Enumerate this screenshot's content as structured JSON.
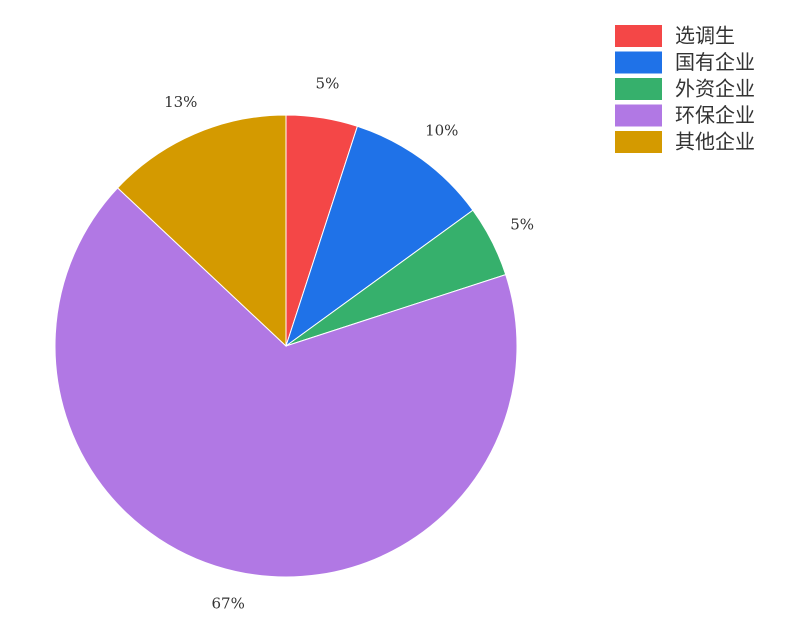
{
  "chart_data": {
    "type": "pie",
    "categories": [
      "选调生",
      "国有企业",
      "外资企业",
      "环保企业",
      "其他企业"
    ],
    "values": [
      5,
      10,
      5,
      67,
      13
    ],
    "value_labels": [
      "5%",
      "10%",
      "5%",
      "67%",
      "13%"
    ],
    "colors": [
      "#f44747",
      "#1f72e8",
      "#36b06c",
      "#b178e4",
      "#d49a00"
    ],
    "legend": "top-right"
  }
}
